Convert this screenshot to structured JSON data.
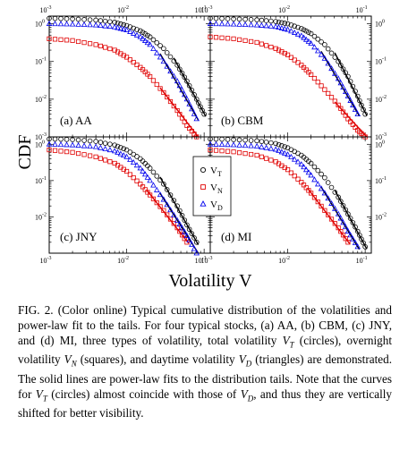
{
  "figure": {
    "y_axis_title": "CDF",
    "x_axis_title": "Volatility V",
    "legend": [
      {
        "symbol": "circle",
        "color": "#000000",
        "label": "V",
        "sub": "T"
      },
      {
        "symbol": "square",
        "color": "#e00000",
        "label": "V",
        "sub": "N"
      },
      {
        "symbol": "triangle",
        "color": "#0000ee",
        "label": "V",
        "sub": "D"
      }
    ],
    "colors": {
      "total": "#000000",
      "overnight": "#e00000",
      "daytime": "#0000ee",
      "fit": "#000000"
    }
  },
  "chart_data": [
    {
      "type": "scatter",
      "panel": "(a)  AA",
      "x_scale": "log",
      "y_scale": "log",
      "xlim": [
        0.001,
        0.12
      ],
      "ylim": [
        0.001,
        1.6
      ],
      "x_ticks": [
        "10^-3",
        "10^-2",
        "10^-1"
      ],
      "y_ticks": [
        "10^-3",
        "10^-2",
        "10^-1",
        "10^0"
      ],
      "series": [
        {
          "name": "V_T",
          "x": [
            0.001,
            0.002,
            0.004,
            0.007,
            0.01,
            0.015,
            0.02,
            0.03,
            0.045,
            0.06,
            0.08,
            0.1
          ],
          "y": [
            1.4,
            1.35,
            1.25,
            1.1,
            0.9,
            0.65,
            0.45,
            0.22,
            0.08,
            0.03,
            0.01,
            0.004
          ]
        },
        {
          "name": "V_N",
          "x": [
            0.001,
            0.002,
            0.004,
            0.007,
            0.01,
            0.015,
            0.02,
            0.03,
            0.045,
            0.06,
            0.08
          ],
          "y": [
            0.4,
            0.36,
            0.28,
            0.2,
            0.13,
            0.07,
            0.04,
            0.015,
            0.005,
            0.002,
            0.001
          ]
        },
        {
          "name": "V_D",
          "x": [
            0.001,
            0.002,
            0.004,
            0.007,
            0.01,
            0.015,
            0.02,
            0.03,
            0.045,
            0.06,
            0.08
          ],
          "y": [
            1.0,
            0.97,
            0.92,
            0.82,
            0.68,
            0.45,
            0.28,
            0.1,
            0.03,
            0.01,
            0.003
          ]
        }
      ]
    },
    {
      "type": "scatter",
      "panel": "(b)  CBM",
      "x_scale": "log",
      "y_scale": "log",
      "xlim": [
        0.001,
        0.12
      ],
      "ylim": [
        0.001,
        1.6
      ],
      "x_ticks": [
        "10^-3",
        "10^-2",
        "10^-1"
      ],
      "y_ticks": [
        "10^-3",
        "10^-2",
        "10^-1",
        "10^0"
      ],
      "series": [
        {
          "name": "V_T",
          "x": [
            0.001,
            0.002,
            0.004,
            0.007,
            0.01,
            0.015,
            0.02,
            0.03,
            0.045,
            0.06,
            0.08,
            0.1
          ],
          "y": [
            1.4,
            1.35,
            1.28,
            1.15,
            1.0,
            0.75,
            0.55,
            0.28,
            0.1,
            0.04,
            0.012,
            0.004
          ]
        },
        {
          "name": "V_N",
          "x": [
            0.001,
            0.002,
            0.004,
            0.007,
            0.01,
            0.015,
            0.02,
            0.03,
            0.045,
            0.06,
            0.08,
            0.1
          ],
          "y": [
            0.45,
            0.4,
            0.32,
            0.22,
            0.15,
            0.08,
            0.045,
            0.018,
            0.007,
            0.003,
            0.0015,
            0.001
          ]
        },
        {
          "name": "V_D",
          "x": [
            0.001,
            0.002,
            0.004,
            0.007,
            0.01,
            0.015,
            0.02,
            0.03,
            0.045,
            0.06,
            0.08
          ],
          "y": [
            1.0,
            0.97,
            0.92,
            0.84,
            0.7,
            0.48,
            0.3,
            0.12,
            0.035,
            0.012,
            0.004
          ]
        }
      ]
    },
    {
      "type": "scatter",
      "panel": "(c)  JNY",
      "x_scale": "log",
      "y_scale": "log",
      "xlim": [
        0.001,
        0.12
      ],
      "ylim": [
        0.001,
        1.6
      ],
      "x_ticks": [
        "10^-3",
        "10^-2",
        "10^-1"
      ],
      "y_ticks": [
        "10^-2",
        "10^-1",
        "10^0"
      ],
      "series": [
        {
          "name": "V_T",
          "x": [
            0.001,
            0.002,
            0.004,
            0.007,
            0.01,
            0.015,
            0.02,
            0.03,
            0.045,
            0.06,
            0.08
          ],
          "y": [
            1.4,
            1.35,
            1.2,
            0.95,
            0.7,
            0.4,
            0.22,
            0.08,
            0.02,
            0.006,
            0.002
          ]
        },
        {
          "name": "V_N",
          "x": [
            0.001,
            0.002,
            0.004,
            0.007,
            0.01,
            0.015,
            0.02,
            0.03,
            0.045,
            0.06
          ],
          "y": [
            0.7,
            0.6,
            0.45,
            0.3,
            0.18,
            0.08,
            0.04,
            0.015,
            0.005,
            0.002
          ]
        },
        {
          "name": "V_D",
          "x": [
            0.001,
            0.002,
            0.004,
            0.007,
            0.01,
            0.015,
            0.02,
            0.03,
            0.045,
            0.06,
            0.08
          ],
          "y": [
            1.0,
            0.95,
            0.85,
            0.65,
            0.45,
            0.22,
            0.1,
            0.03,
            0.008,
            0.003,
            0.001
          ]
        }
      ]
    },
    {
      "type": "scatter",
      "panel": "(d)  MI",
      "x_scale": "log",
      "y_scale": "log",
      "xlim": [
        0.001,
        0.12
      ],
      "ylim": [
        0.001,
        1.6
      ],
      "x_ticks": [
        "10^-3",
        "10^-2",
        "10^-1"
      ],
      "y_ticks": [
        "10^-2",
        "10^-1",
        "10^0"
      ],
      "series": [
        {
          "name": "V_T",
          "x": [
            0.001,
            0.002,
            0.004,
            0.007,
            0.01,
            0.015,
            0.02,
            0.03,
            0.045,
            0.06,
            0.08,
            0.1
          ],
          "y": [
            1.4,
            1.35,
            1.25,
            1.05,
            0.8,
            0.5,
            0.3,
            0.12,
            0.035,
            0.012,
            0.004,
            0.0015
          ]
        },
        {
          "name": "V_N",
          "x": [
            0.001,
            0.002,
            0.004,
            0.007,
            0.01,
            0.015,
            0.02,
            0.03,
            0.045,
            0.06
          ],
          "y": [
            0.7,
            0.62,
            0.5,
            0.33,
            0.2,
            0.09,
            0.045,
            0.015,
            0.005,
            0.002
          ]
        },
        {
          "name": "V_D",
          "x": [
            0.001,
            0.002,
            0.004,
            0.007,
            0.01,
            0.015,
            0.02,
            0.03,
            0.045,
            0.06,
            0.08
          ],
          "y": [
            1.0,
            0.96,
            0.88,
            0.72,
            0.52,
            0.28,
            0.14,
            0.045,
            0.012,
            0.004,
            0.0015
          ]
        }
      ]
    }
  ],
  "caption": {
    "text": "FIG. 2. (Color online) Typical cumulative distribution of the volatilities and power-law fit to the tails. For four typical stocks, (a) AA, (b) CBM, (c) JNY, and (d) MI, three types of volatility, total volatility V_T (circles), overnight volatility V_N (squares), and daytime volatility V_D (triangles) are demonstrated. The solid lines are power-law fits to the distribution tails. Note that the curves for V_T (circles) almost coincide with those of V_D, and thus they are vertically shifted for better visibility."
  }
}
